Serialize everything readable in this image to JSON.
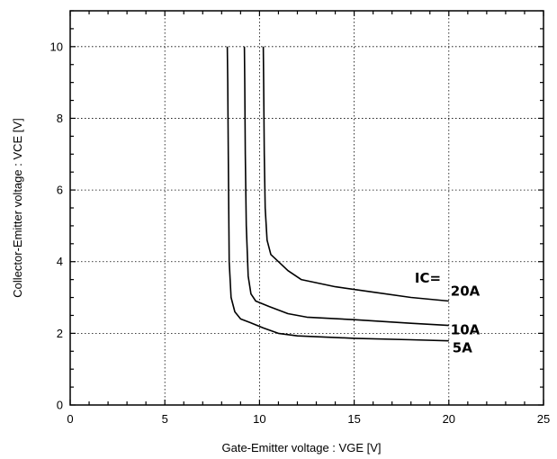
{
  "chart_data": {
    "type": "line",
    "title": "",
    "xlabel": "Gate-Emitter  voltage  : VGE [V]",
    "ylabel": "Collector-Emitter  voltage  :  VCE [V]",
    "xlim": [
      0,
      25
    ],
    "ylim": [
      0,
      11
    ],
    "xticks": [
      0,
      5,
      10,
      15,
      20,
      25
    ],
    "yticks": [
      0,
      2,
      4,
      6,
      8,
      10
    ],
    "x_tick_labels": [
      "0",
      "5",
      "10",
      "15",
      "20",
      "25"
    ],
    "y_tick_labels": [
      "0",
      "2",
      "4",
      "6",
      "8",
      "10"
    ],
    "grid": true,
    "legend_header": "IC=",
    "series": [
      {
        "name": "20A",
        "points": [
          [
            10.2,
            10.0
          ],
          [
            10.22,
            9.0
          ],
          [
            10.25,
            7.0
          ],
          [
            10.3,
            5.5
          ],
          [
            10.4,
            4.6
          ],
          [
            10.6,
            4.2
          ],
          [
            11.0,
            4.0
          ],
          [
            11.5,
            3.75
          ],
          [
            12.2,
            3.5
          ],
          [
            14.0,
            3.3
          ],
          [
            16.0,
            3.15
          ],
          [
            18.0,
            3.0
          ],
          [
            20.0,
            2.9
          ]
        ]
      },
      {
        "name": "10A",
        "points": [
          [
            9.2,
            10.0
          ],
          [
            9.22,
            9.0
          ],
          [
            9.25,
            7.0
          ],
          [
            9.3,
            5.0
          ],
          [
            9.4,
            3.6
          ],
          [
            9.55,
            3.1
          ],
          [
            9.8,
            2.9
          ],
          [
            10.5,
            2.75
          ],
          [
            11.5,
            2.55
          ],
          [
            12.5,
            2.45
          ],
          [
            15.0,
            2.38
          ],
          [
            18.0,
            2.28
          ],
          [
            20.0,
            2.22
          ]
        ]
      },
      {
        "name": "5A",
        "points": [
          [
            8.3,
            10.0
          ],
          [
            8.32,
            9.0
          ],
          [
            8.35,
            7.0
          ],
          [
            8.4,
            4.0
          ],
          [
            8.5,
            3.0
          ],
          [
            8.7,
            2.6
          ],
          [
            9.0,
            2.4
          ],
          [
            9.5,
            2.3
          ],
          [
            10.2,
            2.15
          ],
          [
            11.0,
            2.0
          ],
          [
            12.0,
            1.93
          ],
          [
            15.0,
            1.86
          ],
          [
            18.0,
            1.82
          ],
          [
            20.0,
            1.79
          ]
        ]
      }
    ]
  }
}
